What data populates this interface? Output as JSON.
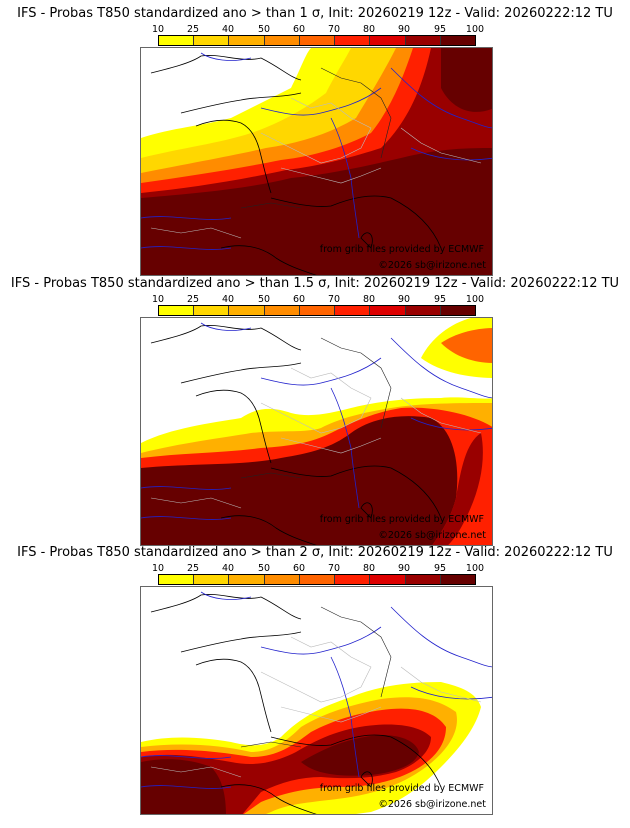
{
  "colorbar": {
    "ticks": [
      "10",
      "25",
      "40",
      "50",
      "60",
      "70",
      "80",
      "90",
      "95",
      "100"
    ],
    "colors": [
      "#ffff00",
      "#ffd700",
      "#ffb000",
      "#ff8c00",
      "#ff6400",
      "#ff2000",
      "#dd0000",
      "#990000",
      "#660000"
    ]
  },
  "panels": [
    {
      "title": "IFS - Probas T850  standardized ano > than 1 σ, Init: 20260219 12z - Valid: 20260222:12 TU",
      "credit_source": "from grib files provided by ECMWF",
      "credit_copyright": "©2026 sb@irizone.net"
    },
    {
      "title": "IFS - Probas T850  standardized ano > than 1.5 σ, Init: 20260219 12z - Valid: 20260222:12 TU",
      "credit_source": "from grib files provided by ECMWF",
      "credit_copyright": "©2026 sb@irizone.net"
    },
    {
      "title": "IFS - Probas T850  standardized ano > than 2 σ, Init: 20260219 12z - Valid: 20260222:12 TU",
      "credit_source": "from grib files provided by ECMWF",
      "credit_copyright": "©2026 sb@irizone.net"
    }
  ]
}
